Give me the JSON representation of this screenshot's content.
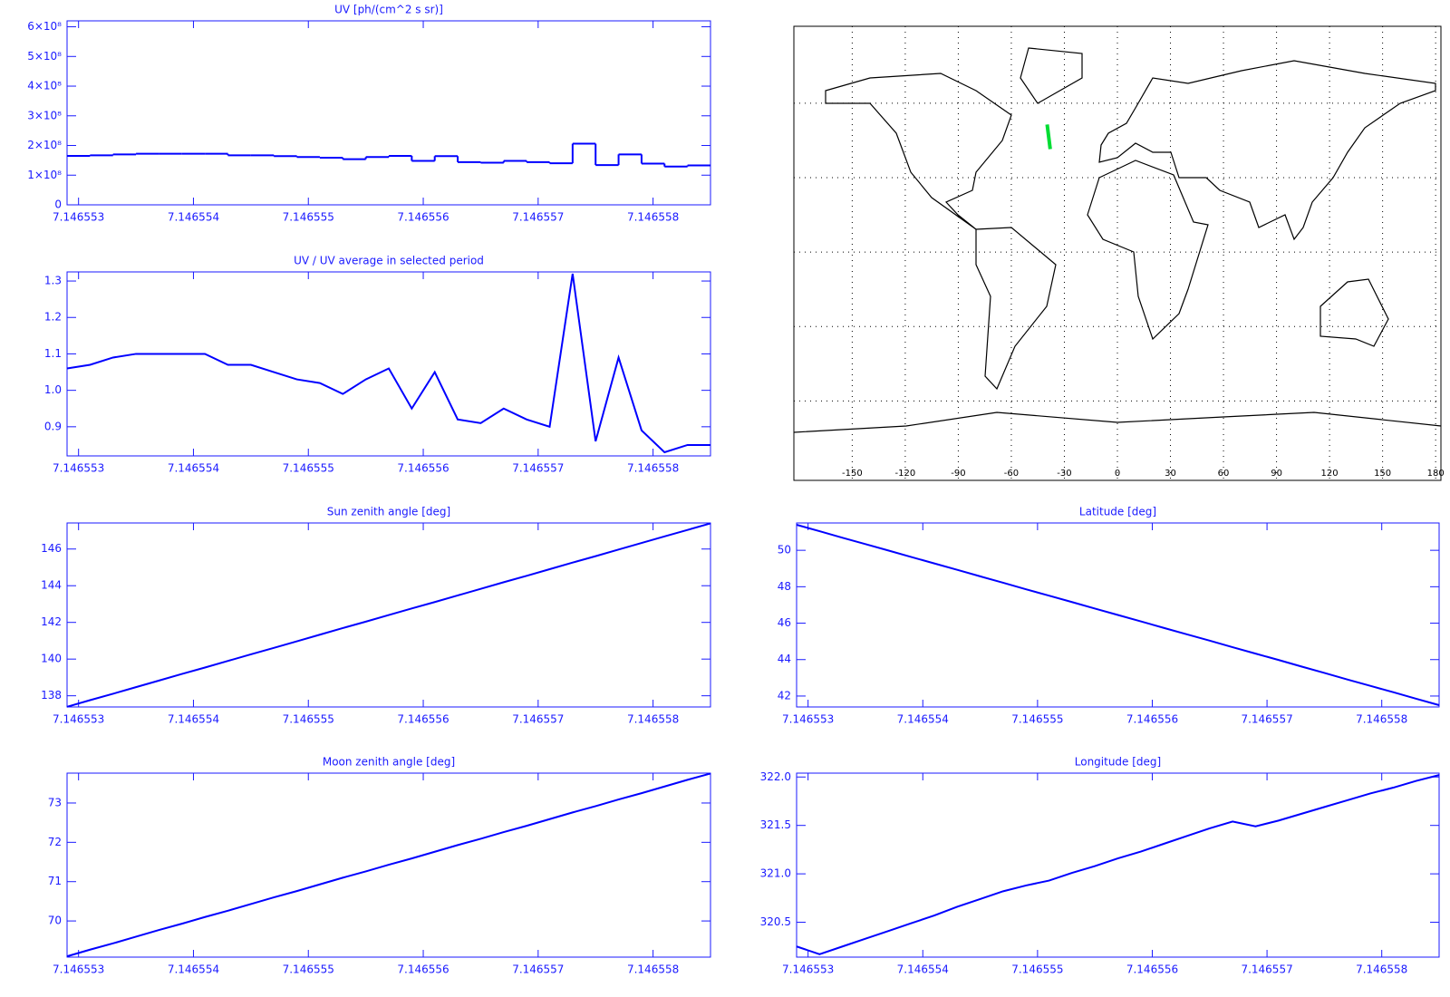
{
  "chart_data": [
    {
      "type": "step",
      "title": "UV [ph/(cm^2 s sr)]",
      "x": [
        7.1465529,
        7.1465531,
        7.1465533,
        7.1465535,
        7.1465537,
        7.1465539,
        7.1465541,
        7.1465543,
        7.1465545,
        7.1465547,
        7.1465549,
        7.1465551,
        7.1465553,
        7.1465555,
        7.1465557,
        7.1465559,
        7.1465561,
        7.1465563,
        7.1465565,
        7.1465567,
        7.1465569,
        7.1465571,
        7.1465573,
        7.1465575,
        7.1465577,
        7.1465579,
        7.1465581,
        7.1465583,
        7.1465585
      ],
      "series": [
        {
          "color": "#0000ff",
          "values": [
            165000000,
            167000000,
            170000000,
            172000000,
            172000000,
            172000000,
            172000000,
            167000000,
            167000000,
            164000000,
            161000000,
            159000000,
            154000000,
            161000000,
            165000000,
            148000000,
            164000000,
            144000000,
            142000000,
            148000000,
            144000000,
            140000000,
            206000000,
            134000000,
            170000000,
            139000000,
            129000000,
            133000000,
            133000000
          ]
        }
      ],
      "xlim": [
        7.1465529,
        7.1465585
      ],
      "xticks": [
        7.146553,
        7.146554,
        7.146555,
        7.146556,
        7.146557,
        7.146558
      ],
      "ylim": [
        0,
        620000000
      ],
      "yticks": [
        0,
        {
          "value": 100000000,
          "label": "1×10⁸"
        },
        {
          "value": 200000000,
          "label": "2×10⁸"
        },
        {
          "value": 300000000,
          "label": "3×10⁸"
        },
        {
          "value": 400000000,
          "label": "4×10⁸"
        },
        {
          "value": 500000000,
          "label": "5×10⁸"
        },
        {
          "value": 600000000,
          "label": "6×10⁸"
        }
      ]
    },
    {
      "type": "line",
      "title": "UV / UV average in selected period",
      "x": [
        7.1465529,
        7.1465531,
        7.1465533,
        7.1465535,
        7.1465537,
        7.1465539,
        7.1465541,
        7.1465543,
        7.1465545,
        7.1465547,
        7.1465549,
        7.1465551,
        7.1465553,
        7.1465555,
        7.1465557,
        7.1465559,
        7.1465561,
        7.1465563,
        7.1465565,
        7.1465567,
        7.1465569,
        7.1465571,
        7.1465573,
        7.1465575,
        7.1465577,
        7.1465579,
        7.1465581,
        7.1465583,
        7.1465585
      ],
      "series": [
        {
          "color": "#0000ff",
          "values": [
            1.06,
            1.07,
            1.09,
            1.1,
            1.1,
            1.1,
            1.1,
            1.07,
            1.07,
            1.05,
            1.03,
            1.02,
            0.99,
            1.03,
            1.06,
            0.95,
            1.05,
            0.92,
            0.91,
            0.95,
            0.92,
            0.9,
            1.32,
            0.86,
            1.09,
            0.89,
            0.83,
            0.85,
            0.85
          ]
        }
      ],
      "xlim": [
        7.1465529,
        7.1465585
      ],
      "xticks": [
        7.146553,
        7.146554,
        7.146555,
        7.146556,
        7.146557,
        7.146558
      ],
      "ylim": [
        0.82,
        1.325
      ],
      "yticks": [
        0.9,
        {
          "value": 1.0,
          "label": "1.0"
        },
        1.1,
        1.2,
        1.3
      ]
    },
    {
      "type": "map",
      "track": {
        "color": "#00dd33",
        "lon": [
          -39.75,
          -38.0
        ],
        "lat": [
          51.4,
          41.5
        ]
      },
      "xlim": [
        -183,
        183
      ],
      "ylim": [
        -92,
        91
      ],
      "xticks": [
        -150,
        -120,
        -90,
        -60,
        -30,
        0,
        30,
        60,
        90,
        120,
        150,
        180
      ]
    },
    {
      "type": "line",
      "title": "Sun zenith angle [deg]",
      "x": [
        7.1465529,
        7.1465531,
        7.1465533,
        7.1465535,
        7.1465537,
        7.1465539,
        7.1465541,
        7.1465543,
        7.1465545,
        7.1465547,
        7.1465549,
        7.1465551,
        7.1465553,
        7.1465555,
        7.1465557,
        7.1465559,
        7.1465561,
        7.1465563,
        7.1465565,
        7.1465567,
        7.1465569,
        7.1465571,
        7.1465573,
        7.1465575,
        7.1465577,
        7.1465579,
        7.1465581,
        7.1465583,
        7.1465585
      ],
      "series": [
        {
          "color": "#0000ff",
          "values": [
            137.4,
            137.76,
            138.11,
            138.47,
            138.83,
            139.19,
            139.54,
            139.9,
            140.26,
            140.61,
            140.97,
            141.33,
            141.69,
            142.04,
            142.4,
            142.76,
            143.11,
            143.47,
            143.83,
            144.19,
            144.54,
            144.9,
            145.26,
            145.61,
            145.97,
            146.33,
            146.69,
            147.04,
            147.4
          ]
        }
      ],
      "xlim": [
        7.1465529,
        7.1465585
      ],
      "xticks": [
        7.146553,
        7.146554,
        7.146555,
        7.146556,
        7.146557,
        7.146558
      ],
      "ylim": [
        137.39,
        147.42
      ],
      "yticks": [
        138,
        140,
        142,
        144,
        146
      ]
    },
    {
      "type": "line",
      "title": "Latitude [deg]",
      "x": [
        7.1465529,
        7.1465531,
        7.1465533,
        7.1465535,
        7.1465537,
        7.1465539,
        7.1465541,
        7.1465543,
        7.1465545,
        7.1465547,
        7.1465549,
        7.1465551,
        7.1465553,
        7.1465555,
        7.1465557,
        7.1465559,
        7.1465561,
        7.1465563,
        7.1465565,
        7.1465567,
        7.1465569,
        7.1465571,
        7.1465573,
        7.1465575,
        7.1465577,
        7.1465579,
        7.1465581,
        7.1465583,
        7.1465585
      ],
      "series": [
        {
          "color": "#0000ff",
          "values": [
            51.4,
            51.05,
            50.69,
            50.34,
            49.99,
            49.63,
            49.28,
            48.93,
            48.57,
            48.22,
            47.86,
            47.51,
            47.16,
            46.8,
            46.45,
            46.1,
            45.74,
            45.39,
            45.04,
            44.68,
            44.33,
            43.98,
            43.62,
            43.27,
            42.91,
            42.56,
            42.21,
            41.85,
            41.5
          ]
        }
      ],
      "xlim": [
        7.1465529,
        7.1465585
      ],
      "xticks": [
        7.146553,
        7.146554,
        7.146555,
        7.146556,
        7.146557,
        7.146558
      ],
      "ylim": [
        41.4,
        51.5
      ],
      "yticks": [
        42,
        44,
        46,
        48,
        50
      ]
    },
    {
      "type": "line",
      "title": "Moon zenith angle [deg]",
      "x": [
        7.1465529,
        7.1465531,
        7.1465533,
        7.1465535,
        7.1465537,
        7.1465539,
        7.1465541,
        7.1465543,
        7.1465545,
        7.1465547,
        7.1465549,
        7.1465551,
        7.1465553,
        7.1465555,
        7.1465557,
        7.1465559,
        7.1465561,
        7.1465563,
        7.1465565,
        7.1465567,
        7.1465569,
        7.1465571,
        7.1465573,
        7.1465575,
        7.1465577,
        7.1465579,
        7.1465581,
        7.1465583,
        7.1465585
      ],
      "series": [
        {
          "color": "#0000ff",
          "values": [
            69.1,
            69.27,
            69.43,
            69.6,
            69.77,
            69.93,
            70.1,
            70.26,
            70.43,
            70.6,
            70.76,
            70.93,
            71.1,
            71.26,
            71.43,
            71.59,
            71.76,
            71.93,
            72.09,
            72.26,
            72.42,
            72.59,
            72.76,
            72.92,
            73.09,
            73.25,
            73.42,
            73.59,
            73.75
          ]
        }
      ],
      "xlim": [
        7.1465529,
        7.1465585
      ],
      "xticks": [
        7.146553,
        7.146554,
        7.146555,
        7.146556,
        7.146557,
        7.146558
      ],
      "ylim": [
        69.08,
        73.76
      ],
      "yticks": [
        70,
        71,
        72,
        73
      ]
    },
    {
      "type": "line",
      "title": "Longitude [deg]",
      "x": [
        7.1465529,
        7.1465531,
        7.1465533,
        7.1465535,
        7.1465537,
        7.1465539,
        7.1465541,
        7.1465543,
        7.1465545,
        7.1465547,
        7.1465549,
        7.1465551,
        7.1465553,
        7.1465555,
        7.1465557,
        7.1465559,
        7.1465561,
        7.1465563,
        7.1465565,
        7.1465567,
        7.1465569,
        7.1465571,
        7.1465573,
        7.1465575,
        7.1465577,
        7.1465579,
        7.1465581,
        7.1465583,
        7.1465585
      ],
      "series": [
        {
          "color": "#0000ff",
          "values": [
            320.25,
            320.17,
            320.25,
            320.33,
            320.41,
            320.49,
            320.57,
            320.66,
            320.74,
            320.82,
            320.88,
            320.93,
            321.01,
            321.08,
            321.16,
            321.23,
            321.31,
            321.39,
            321.47,
            321.54,
            321.49,
            321.55,
            321.62,
            321.69,
            321.76,
            321.83,
            321.89,
            321.96,
            322.02
          ]
        }
      ],
      "xlim": [
        7.1465529,
        7.1465585
      ],
      "xticks": [
        7.146553,
        7.146554,
        7.146555,
        7.146556,
        7.146557,
        7.146558
      ],
      "ylim": [
        320.14,
        322.04
      ],
      "yticks": [
        320.5,
        {
          "value": 321.0,
          "label": "321.0"
        },
        321.5,
        {
          "value": 322.0,
          "label": "322.0"
        }
      ]
    }
  ]
}
